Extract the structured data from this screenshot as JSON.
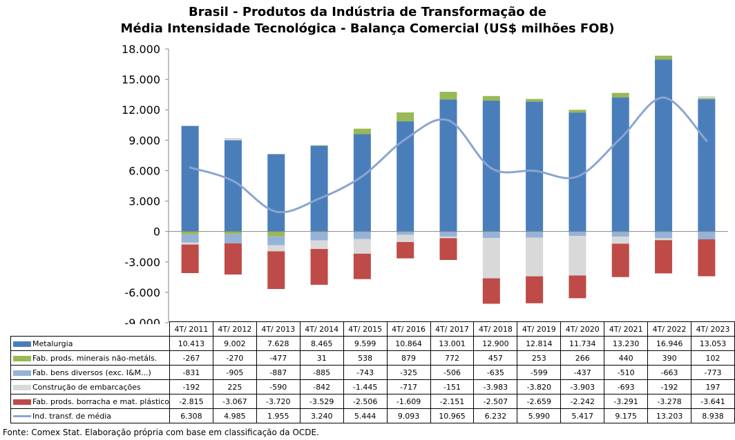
{
  "chart_data": {
    "type": "bar",
    "stacked": true,
    "title_line1": "Brasil - Produtos da Indústria de Transformação de",
    "title_line2": "Média Intensidade Tecnológica - Balança Comercial (US$ milhões FOB)",
    "categories": [
      "4T/ 2011",
      "4T/ 2012",
      "4T/ 2013",
      "4T/ 2014",
      "4T/ 2015",
      "4T/ 2016",
      "4T/ 2017",
      "4T/ 2018",
      "4T/ 2019",
      "4T/ 2020",
      "4T/ 2021",
      "4T/ 2022",
      "4T/ 2023"
    ],
    "ylim": [
      -9000,
      18000
    ],
    "yticks": [
      18000,
      15000,
      12000,
      9000,
      6000,
      3000,
      0,
      -3000,
      -6000,
      -9000
    ],
    "ytick_labels": [
      "18.000",
      "15.000",
      "12.000",
      "9.000",
      "6.000",
      "3.000",
      "0",
      "-3.000",
      "-6.000",
      "-9.000"
    ],
    "grid": false,
    "legend": "data table below chart",
    "series": [
      {
        "name": "Metalurgia",
        "kind": "bar",
        "color": "#4a7ebb",
        "values": [
          10413,
          9002,
          7628,
          8465,
          9599,
          10864,
          13001,
          12900,
          12814,
          11734,
          13230,
          16946,
          13053
        ],
        "labels": [
          "10.413",
          "9.002",
          "7.628",
          "8.465",
          "9.599",
          "10.864",
          "13.001",
          "12.900",
          "12.814",
          "11.734",
          "13.230",
          "16.946",
          "13.053"
        ]
      },
      {
        "name": "Fab. prods. minerais não-metáls.",
        "kind": "bar",
        "color": "#98b954",
        "values": [
          -267,
          -270,
          -477,
          31,
          538,
          879,
          772,
          457,
          253,
          266,
          440,
          390,
          102
        ],
        "labels": [
          "-267",
          "-270",
          "-477",
          "31",
          "538",
          "879",
          "772",
          "457",
          "253",
          "266",
          "440",
          "390",
          "102"
        ]
      },
      {
        "name": "Fab. bens diversos (exc. I&M...)",
        "kind": "bar",
        "color": "#95b3d7",
        "values": [
          -831,
          -905,
          -887,
          -885,
          -743,
          -325,
          -506,
          -635,
          -599,
          -437,
          -510,
          -663,
          -773
        ],
        "labels": [
          "-831",
          "-905",
          "-887",
          "-885",
          "-743",
          "-325",
          "-506",
          "-635",
          "-599",
          "-437",
          "-510",
          "-663",
          "-773"
        ]
      },
      {
        "name": "Construção de embarcações",
        "kind": "bar",
        "color": "#d9d9d9",
        "values": [
          -192,
          225,
          -590,
          -842,
          -1445,
          -717,
          -151,
          -3983,
          -3820,
          -3903,
          -693,
          -192,
          197
        ],
        "labels": [
          "-192",
          "225",
          "-590",
          "-842",
          "-1.445",
          "-717",
          "-151",
          "-3.983",
          "-3.820",
          "-3.903",
          "-693",
          "-192",
          "197"
        ]
      },
      {
        "name": "Fab. prods. borracha e mat. plástico",
        "kind": "bar",
        "color": "#be4b48",
        "values": [
          -2815,
          -3067,
          -3720,
          -3529,
          -2506,
          -1609,
          -2151,
          -2507,
          -2659,
          -2242,
          -3291,
          -3278,
          -3641
        ],
        "labels": [
          "-2.815",
          "-3.067",
          "-3.720",
          "-3.529",
          "-2.506",
          "-1.609",
          "-2.151",
          "-2.507",
          "-2.659",
          "-2.242",
          "-3.291",
          "-3.278",
          "-3.641"
        ]
      },
      {
        "name": "Ind. transf. de média",
        "kind": "line",
        "color": "#8aa5d0",
        "values": [
          6308,
          4985,
          1955,
          3240,
          5444,
          9093,
          10965,
          6232,
          5990,
          5417,
          9175,
          13203,
          8938
        ],
        "labels": [
          "6.308",
          "4.985",
          "1.955",
          "3.240",
          "5.444",
          "9.093",
          "10.965",
          "6.232",
          "5.990",
          "5.417",
          "9.175",
          "13.203",
          "8.938"
        ]
      }
    ]
  },
  "footer": {
    "source": "Fonte: Comex Stat. Elaboração própria com base em classificação da OCDE."
  }
}
